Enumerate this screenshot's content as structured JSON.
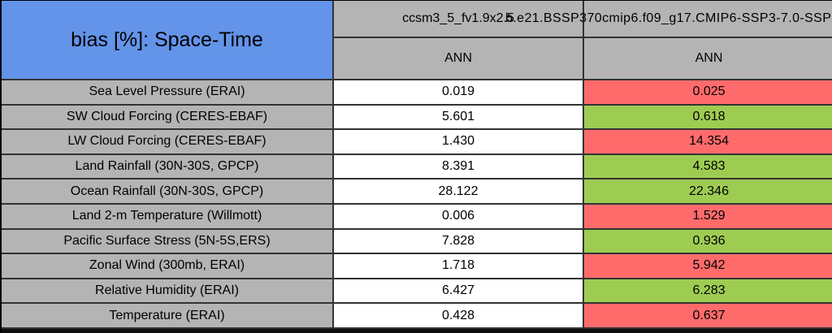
{
  "chart_data": {
    "type": "table",
    "title": "bias [%]: Space-Time",
    "columns": [
      {
        "model": "ccsm3_5_fv1.9x2.5",
        "season": "ANN"
      },
      {
        "model": "b.e21.BSSP370cmip6.f09_g17.CMIP6-SSP3-7.0-SSP",
        "season": "ANN"
      }
    ],
    "rows": [
      {
        "label": "Sea Level Pressure (ERAI)",
        "values": [
          "0.019",
          "0.025"
        ],
        "highlight": "red"
      },
      {
        "label": "SW Cloud Forcing (CERES-EBAF)",
        "values": [
          "5.601",
          "0.618"
        ],
        "highlight": "green"
      },
      {
        "label": "LW Cloud Forcing (CERES-EBAF)",
        "values": [
          "1.430",
          "14.354"
        ],
        "highlight": "red"
      },
      {
        "label": "Land Rainfall (30N-30S, GPCP)",
        "values": [
          "8.391",
          "4.583"
        ],
        "highlight": "green"
      },
      {
        "label": "Ocean Rainfall (30N-30S, GPCP)",
        "values": [
          "28.122",
          "22.346"
        ],
        "highlight": "green"
      },
      {
        "label": "Land 2-m Temperature (Willmott)",
        "values": [
          "0.006",
          "1.529"
        ],
        "highlight": "red"
      },
      {
        "label": "Pacific Surface Stress (5N-5S,ERS)",
        "values": [
          "7.828",
          "0.936"
        ],
        "highlight": "green"
      },
      {
        "label": "Zonal Wind (300mb, ERAI)",
        "values": [
          "1.718",
          "5.942"
        ],
        "highlight": "red"
      },
      {
        "label": "Relative Humidity (ERAI)",
        "values": [
          "6.427",
          "6.283"
        ],
        "highlight": "green"
      },
      {
        "label": "Temperature (ERAI)",
        "values": [
          "0.428",
          "0.637"
        ],
        "highlight": "red"
      }
    ]
  },
  "colors": {
    "header_blue": "#6394e9",
    "cell_gray": "#b4b4b4",
    "value_red": "#ff6b6b",
    "value_green": "#9ecc52"
  }
}
